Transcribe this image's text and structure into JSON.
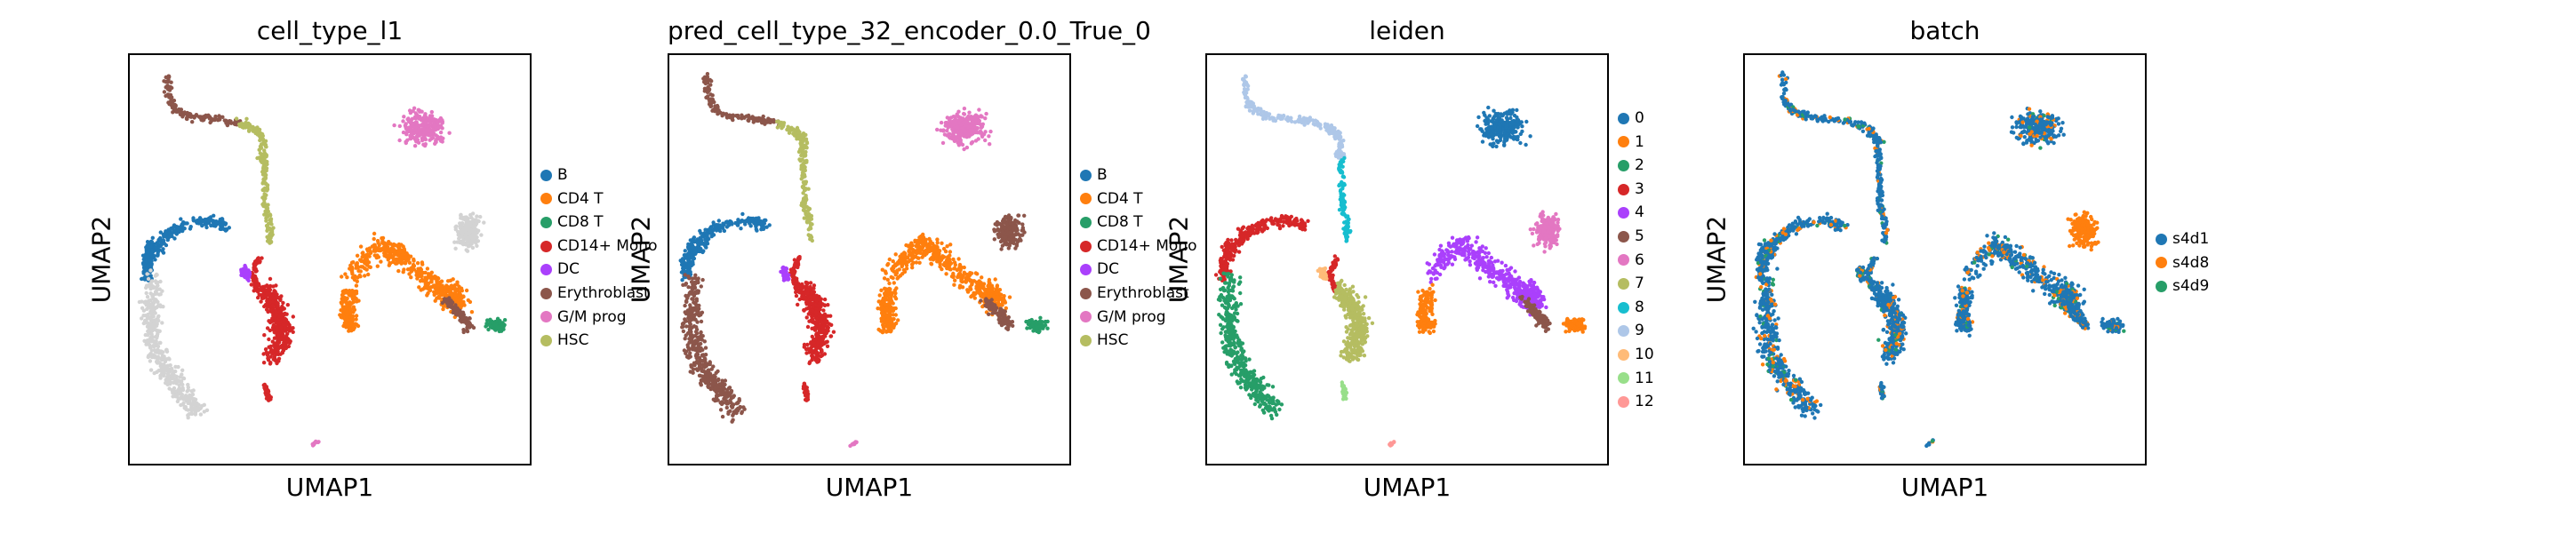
{
  "chart_data": [
    {
      "type": "scatter",
      "title": "cell_type_l1",
      "xlabel": "UMAP1",
      "ylabel": "UMAP2",
      "grid": false,
      "legend_position": "right",
      "legend": [
        {
          "label": "B",
          "color": "#1f77b4"
        },
        {
          "label": "CD4 T",
          "color": "#ff7f0e"
        },
        {
          "label": "CD8 T",
          "color": "#279e68"
        },
        {
          "label": "CD14+ Mono",
          "color": "#d62728"
        },
        {
          "label": "DC",
          "color": "#aa40fc"
        },
        {
          "label": "Erythroblast",
          "color": "#8c564b"
        },
        {
          "label": "G/M prog",
          "color": "#e377c2"
        },
        {
          "label": "HSC",
          "color": "#b5bd61"
        }
      ],
      "cluster_map": {
        "top_arc": "Erythroblast",
        "top_arc_light": "HSC",
        "right_top": "G/M prog",
        "stem": "HSC",
        "left_mid": "B",
        "left_arc_a": "B",
        "left_arc_b": "CD14+ Mono",
        "center": "CD14+ Mono",
        "center_bot": "CD14+ Mono",
        "dc": "DC",
        "left_low": "other",
        "orange_big": "CD4 T",
        "orange_small": "CD4 T",
        "brown_tail": "Erythroblast",
        "pink_small": "other",
        "green_small": "CD8 T",
        "tiny_bottom": "G/M prog"
      }
    },
    {
      "type": "scatter",
      "title": "pred_cell_type_32_encoder_0.0_True_0",
      "xlabel": "UMAP1",
      "ylabel": "UMAP2",
      "grid": false,
      "legend_position": "right",
      "legend": [
        {
          "label": "B",
          "color": "#1f77b4"
        },
        {
          "label": "CD4 T",
          "color": "#ff7f0e"
        },
        {
          "label": "CD8 T",
          "color": "#279e68"
        },
        {
          "label": "CD14+ Mono",
          "color": "#d62728"
        },
        {
          "label": "DC",
          "color": "#aa40fc"
        },
        {
          "label": "Erythroblast",
          "color": "#8c564b"
        },
        {
          "label": "G/M prog",
          "color": "#e377c2"
        },
        {
          "label": "HSC",
          "color": "#b5bd61"
        }
      ],
      "cluster_map": {
        "top_arc": "Erythroblast",
        "top_arc_light": "HSC",
        "right_top": "G/M prog",
        "stem": "HSC",
        "left_mid": "B",
        "left_arc_a": "B",
        "left_arc_b": "CD14+ Mono",
        "center": "CD14+ Mono",
        "center_bot": "CD14+ Mono",
        "dc": "DC",
        "left_low": "Erythroblast",
        "orange_big": "CD4 T",
        "orange_small": "CD4 T",
        "brown_tail": "Erythroblast",
        "pink_small": "Erythroblast",
        "green_small": "CD8 T",
        "tiny_bottom": "G/M prog"
      }
    },
    {
      "type": "scatter",
      "title": "leiden",
      "xlabel": "UMAP1",
      "ylabel": "UMAP2",
      "grid": false,
      "legend_position": "right",
      "legend": [
        {
          "label": "0",
          "color": "#1f77b4"
        },
        {
          "label": "1",
          "color": "#ff7f0e"
        },
        {
          "label": "2",
          "color": "#279e68"
        },
        {
          "label": "3",
          "color": "#d62728"
        },
        {
          "label": "4",
          "color": "#aa40fc"
        },
        {
          "label": "5",
          "color": "#8c564b"
        },
        {
          "label": "6",
          "color": "#e377c2"
        },
        {
          "label": "7",
          "color": "#b5bd61"
        },
        {
          "label": "8",
          "color": "#17becf"
        },
        {
          "label": "9",
          "color": "#aec7e8"
        },
        {
          "label": "10",
          "color": "#ffbb78"
        },
        {
          "label": "11",
          "color": "#98df8a"
        },
        {
          "label": "12",
          "color": "#ff9896"
        }
      ],
      "cluster_map": {
        "top_arc": "9",
        "top_arc_light": "9",
        "right_top": "0",
        "stem": "8",
        "left_mid": "3",
        "left_arc_a": "3",
        "left_arc_b": "3",
        "center": "7",
        "center_bot": "11",
        "dc": "10",
        "left_low": "2",
        "orange_big": "4",
        "orange_small": "1",
        "brown_tail": "5",
        "pink_small": "6",
        "green_small": "1",
        "tiny_bottom": "12"
      }
    },
    {
      "type": "scatter",
      "title": "batch",
      "xlabel": "UMAP1",
      "ylabel": "UMAP2",
      "grid": false,
      "legend_position": "right",
      "legend": [
        {
          "label": "s4d1",
          "color": "#1f77b4"
        },
        {
          "label": "s4d8",
          "color": "#ff7f0e"
        },
        {
          "label": "s4d9",
          "color": "#279e68"
        }
      ],
      "cluster_map": {
        "top_arc": "s4d1",
        "top_arc_light": "s4d1",
        "right_top": "s4d1",
        "stem": "s4d1",
        "left_mid": "s4d1",
        "left_arc_a": "s4d1",
        "left_arc_b": "s4d1",
        "center": "s4d1",
        "center_bot": "s4d1",
        "dc": "s4d1",
        "left_low": "s4d1",
        "orange_big": "s4d1",
        "orange_small": "s4d1",
        "brown_tail": "s4d1",
        "pink_small": "s4d8",
        "green_small": "s4d1",
        "tiny_bottom": "s4d1"
      }
    }
  ],
  "other_color": "#d3d3d3"
}
